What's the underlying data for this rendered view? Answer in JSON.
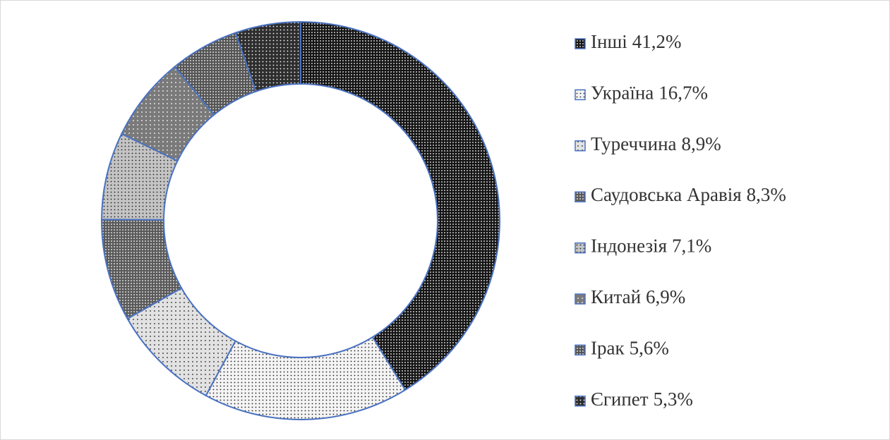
{
  "chart_data": {
    "type": "donut",
    "categories": [
      "Інші",
      "Україна",
      "Туреччина",
      "Саудовська Аравія",
      "Індонезія",
      "Китай",
      "Ірак",
      "Єгипет"
    ],
    "values": [
      41.2,
      16.7,
      8.9,
      8.3,
      7.1,
      6.9,
      5.6,
      5.3
    ],
    "value_labels": [
      "41,2%",
      "16,7%",
      "8,9%",
      "8,3%",
      "7,1%",
      "6,9%",
      "5,6%",
      "5,3%"
    ],
    "colors": [
      "#151515",
      "#f4f4f4",
      "#e2e2e2",
      "#5a5a5a",
      "#c4c4c4",
      "#7a7a7a",
      "#555555",
      "#2e2e2e"
    ],
    "legend": "right"
  }
}
